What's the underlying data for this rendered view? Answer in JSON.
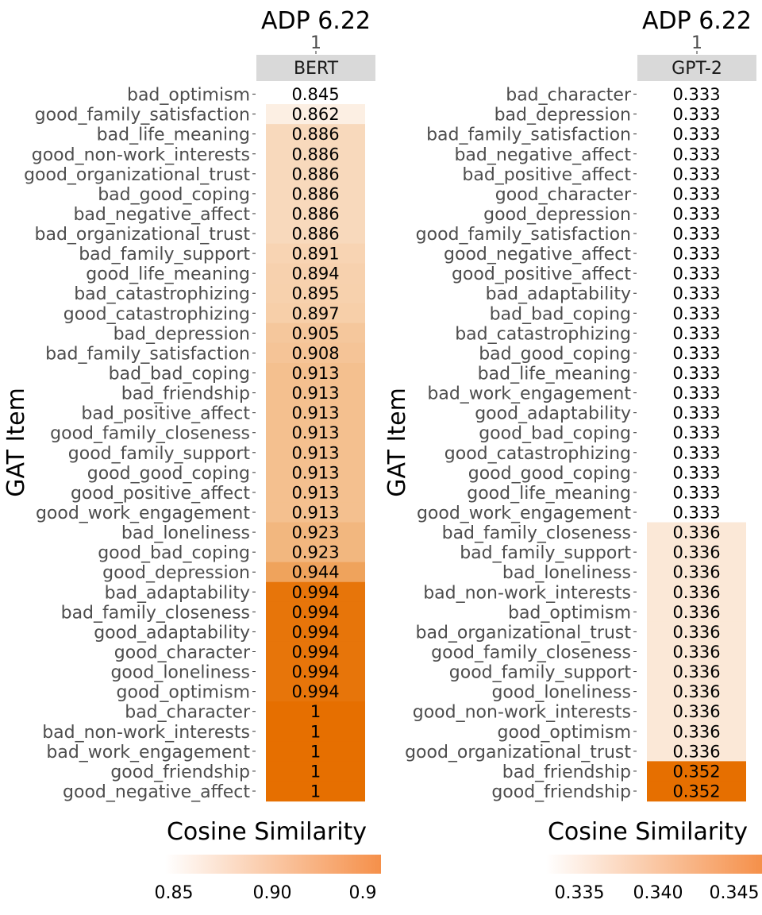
{
  "chart_data": [
    {
      "type": "heatmap",
      "title": "ADP 6.22",
      "facet_value": "1",
      "strip_label": "BERT",
      "ylabel": "GAT Item",
      "legend_title": "Cosine Similarity",
      "legend_ticks": [
        "0.85",
        "0.90",
        "0.9"
      ],
      "scale": {
        "low": 0.845,
        "high": 1.0,
        "low_color": "#ffffff",
        "high_color": "#e66f00"
      },
      "rows": [
        {
          "item": "bad_optimism",
          "value": 0.845,
          "label": "0.845"
        },
        {
          "item": "good_family_satisfaction",
          "value": 0.862,
          "label": "0.862"
        },
        {
          "item": "bad_life_meaning",
          "value": 0.886,
          "label": "0.886"
        },
        {
          "item": "good_non-work_interests",
          "value": 0.886,
          "label": "0.886"
        },
        {
          "item": "good_organizational_trust",
          "value": 0.886,
          "label": "0.886"
        },
        {
          "item": "bad_good_coping",
          "value": 0.886,
          "label": "0.886"
        },
        {
          "item": "bad_negative_affect",
          "value": 0.886,
          "label": "0.886"
        },
        {
          "item": "bad_organizational_trust",
          "value": 0.886,
          "label": "0.886"
        },
        {
          "item": "bad_family_support",
          "value": 0.891,
          "label": "0.891"
        },
        {
          "item": "good_life_meaning",
          "value": 0.894,
          "label": "0.894"
        },
        {
          "item": "bad_catastrophizing",
          "value": 0.895,
          "label": "0.895"
        },
        {
          "item": "good_catastrophizing",
          "value": 0.897,
          "label": "0.897"
        },
        {
          "item": "bad_depression",
          "value": 0.905,
          "label": "0.905"
        },
        {
          "item": "bad_family_satisfaction",
          "value": 0.908,
          "label": "0.908"
        },
        {
          "item": "bad_bad_coping",
          "value": 0.913,
          "label": "0.913"
        },
        {
          "item": "bad_friendship",
          "value": 0.913,
          "label": "0.913"
        },
        {
          "item": "bad_positive_affect",
          "value": 0.913,
          "label": "0.913"
        },
        {
          "item": "good_family_closeness",
          "value": 0.913,
          "label": "0.913"
        },
        {
          "item": "good_family_support",
          "value": 0.913,
          "label": "0.913"
        },
        {
          "item": "good_good_coping",
          "value": 0.913,
          "label": "0.913"
        },
        {
          "item": "good_positive_affect",
          "value": 0.913,
          "label": "0.913"
        },
        {
          "item": "good_work_engagement",
          "value": 0.913,
          "label": "0.913"
        },
        {
          "item": "bad_loneliness",
          "value": 0.923,
          "label": "0.923"
        },
        {
          "item": "good_bad_coping",
          "value": 0.923,
          "label": "0.923"
        },
        {
          "item": "good_depression",
          "value": 0.944,
          "label": "0.944"
        },
        {
          "item": "bad_adaptability",
          "value": 0.994,
          "label": "0.994"
        },
        {
          "item": "bad_family_closeness",
          "value": 0.994,
          "label": "0.994"
        },
        {
          "item": "good_adaptability",
          "value": 0.994,
          "label": "0.994"
        },
        {
          "item": "good_character",
          "value": 0.994,
          "label": "0.994"
        },
        {
          "item": "good_loneliness",
          "value": 0.994,
          "label": "0.994"
        },
        {
          "item": "good_optimism",
          "value": 0.994,
          "label": "0.994"
        },
        {
          "item": "bad_character",
          "value": 1.0,
          "label": "1"
        },
        {
          "item": "bad_non-work_interests",
          "value": 1.0,
          "label": "1"
        },
        {
          "item": "bad_work_engagement",
          "value": 1.0,
          "label": "1"
        },
        {
          "item": "good_friendship",
          "value": 1.0,
          "label": "1"
        },
        {
          "item": "good_negative_affect",
          "value": 1.0,
          "label": "1"
        }
      ]
    },
    {
      "type": "heatmap",
      "title": "ADP 6.22",
      "facet_value": "1",
      "strip_label": "GPT-2",
      "ylabel": "GAT Item",
      "legend_title": "Cosine Similarity",
      "legend_ticks": [
        "0.335",
        "0.340",
        "0.345"
      ],
      "scale": {
        "low": 0.333,
        "high": 0.352,
        "low_color": "#ffffff",
        "high_color": "#e66f00"
      },
      "rows": [
        {
          "item": "bad_character",
          "value": 0.333,
          "label": "0.333"
        },
        {
          "item": "bad_depression",
          "value": 0.333,
          "label": "0.333"
        },
        {
          "item": "bad_family_satisfaction",
          "value": 0.333,
          "label": "0.333"
        },
        {
          "item": "bad_negative_affect",
          "value": 0.333,
          "label": "0.333"
        },
        {
          "item": "bad_positive_affect",
          "value": 0.333,
          "label": "0.333"
        },
        {
          "item": "good_character",
          "value": 0.333,
          "label": "0.333"
        },
        {
          "item": "good_depression",
          "value": 0.333,
          "label": "0.333"
        },
        {
          "item": "good_family_satisfaction",
          "value": 0.333,
          "label": "0.333"
        },
        {
          "item": "good_negative_affect",
          "value": 0.333,
          "label": "0.333"
        },
        {
          "item": "good_positive_affect",
          "value": 0.333,
          "label": "0.333"
        },
        {
          "item": "bad_adaptability",
          "value": 0.333,
          "label": "0.333"
        },
        {
          "item": "bad_bad_coping",
          "value": 0.333,
          "label": "0.333"
        },
        {
          "item": "bad_catastrophizing",
          "value": 0.333,
          "label": "0.333"
        },
        {
          "item": "bad_good_coping",
          "value": 0.333,
          "label": "0.333"
        },
        {
          "item": "bad_life_meaning",
          "value": 0.333,
          "label": "0.333"
        },
        {
          "item": "bad_work_engagement",
          "value": 0.333,
          "label": "0.333"
        },
        {
          "item": "good_adaptability",
          "value": 0.333,
          "label": "0.333"
        },
        {
          "item": "good_bad_coping",
          "value": 0.333,
          "label": "0.333"
        },
        {
          "item": "good_catastrophizing",
          "value": 0.333,
          "label": "0.333"
        },
        {
          "item": "good_good_coping",
          "value": 0.333,
          "label": "0.333"
        },
        {
          "item": "good_life_meaning",
          "value": 0.333,
          "label": "0.333"
        },
        {
          "item": "good_work_engagement",
          "value": 0.333,
          "label": "0.333"
        },
        {
          "item": "bad_family_closeness",
          "value": 0.336,
          "label": "0.336"
        },
        {
          "item": "bad_family_support",
          "value": 0.336,
          "label": "0.336"
        },
        {
          "item": "bad_loneliness",
          "value": 0.336,
          "label": "0.336"
        },
        {
          "item": "bad_non-work_interests",
          "value": 0.336,
          "label": "0.336"
        },
        {
          "item": "bad_optimism",
          "value": 0.336,
          "label": "0.336"
        },
        {
          "item": "bad_organizational_trust",
          "value": 0.336,
          "label": "0.336"
        },
        {
          "item": "good_family_closeness",
          "value": 0.336,
          "label": "0.336"
        },
        {
          "item": "good_family_support",
          "value": 0.336,
          "label": "0.336"
        },
        {
          "item": "good_loneliness",
          "value": 0.336,
          "label": "0.336"
        },
        {
          "item": "good_non-work_interests",
          "value": 0.336,
          "label": "0.336"
        },
        {
          "item": "good_optimism",
          "value": 0.336,
          "label": "0.336"
        },
        {
          "item": "good_organizational_trust",
          "value": 0.336,
          "label": "0.336"
        },
        {
          "item": "bad_friendship",
          "value": 0.352,
          "label": "0.352"
        },
        {
          "item": "good_friendship",
          "value": 0.352,
          "label": "0.352"
        }
      ]
    }
  ]
}
